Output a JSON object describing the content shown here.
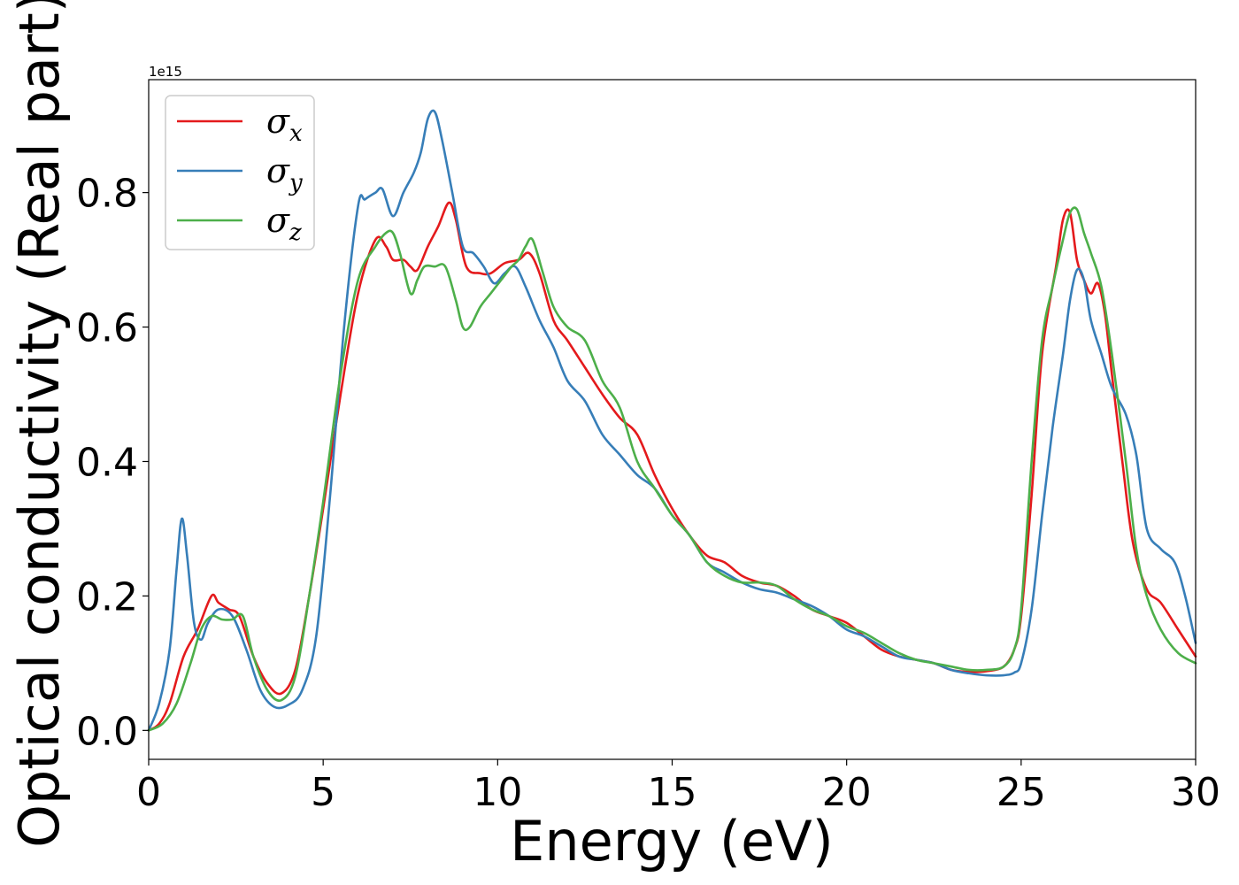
{
  "chart_data": {
    "type": "line",
    "xlabel": "Energy (eV)",
    "ylabel": "Optical conductivity (Real part)",
    "offset_text": "1e15",
    "xlim": [
      0,
      30
    ],
    "ylim": [
      -0.043,
      0.968
    ],
    "xticks": [
      0,
      5,
      10,
      15,
      20,
      25,
      30
    ],
    "xtick_labels": [
      "0",
      "5",
      "10",
      "15",
      "20",
      "25",
      "30"
    ],
    "yticks": [
      0.0,
      0.2,
      0.4,
      0.6,
      0.8
    ],
    "ytick_labels": [
      "0.0",
      "0.2",
      "0.4",
      "0.6",
      "0.8"
    ],
    "grid": false,
    "legend_position": "top-left",
    "series": [
      {
        "name": "σx",
        "legend_base": "σ",
        "legend_sub": "x",
        "color": "#e41a1c",
        "x": [
          0,
          0.3,
          0.6,
          1.0,
          1.4,
          1.8,
          2.0,
          2.3,
          2.6,
          3.0,
          3.4,
          3.8,
          4.2,
          4.6,
          5.0,
          5.5,
          6.0,
          6.5,
          6.8,
          7.0,
          7.3,
          7.5,
          7.7,
          8.0,
          8.3,
          8.6,
          8.8,
          9.1,
          9.5,
          9.8,
          10.2,
          10.6,
          10.9,
          11.2,
          11.6,
          12.0,
          12.5,
          13.0,
          13.5,
          14.0,
          14.5,
          15.0,
          15.5,
          16.0,
          16.5,
          17.0,
          17.5,
          18.0,
          18.5,
          19.0,
          19.5,
          20.0,
          20.5,
          21.0,
          21.5,
          22.0,
          22.5,
          23.0,
          23.5,
          24.0,
          24.5,
          24.8,
          25.0,
          25.3,
          25.6,
          26.0,
          26.2,
          26.4,
          26.6,
          26.8,
          27.0,
          27.2,
          27.4,
          27.6,
          27.9,
          28.2,
          28.6,
          29.0,
          29.5,
          30.0
        ],
        "y": [
          0,
          0.01,
          0.04,
          0.11,
          0.15,
          0.2,
          0.19,
          0.18,
          0.17,
          0.11,
          0.07,
          0.055,
          0.09,
          0.2,
          0.33,
          0.5,
          0.65,
          0.73,
          0.72,
          0.7,
          0.7,
          0.69,
          0.685,
          0.72,
          0.75,
          0.785,
          0.76,
          0.69,
          0.68,
          0.68,
          0.695,
          0.7,
          0.71,
          0.68,
          0.61,
          0.58,
          0.54,
          0.5,
          0.465,
          0.44,
          0.38,
          0.33,
          0.29,
          0.26,
          0.25,
          0.23,
          0.22,
          0.215,
          0.2,
          0.18,
          0.17,
          0.16,
          0.14,
          0.12,
          0.11,
          0.105,
          0.1,
          0.09,
          0.087,
          0.088,
          0.095,
          0.12,
          0.17,
          0.35,
          0.56,
          0.69,
          0.76,
          0.77,
          0.7,
          0.67,
          0.65,
          0.665,
          0.62,
          0.53,
          0.4,
          0.28,
          0.21,
          0.19,
          0.15,
          0.11
        ]
      },
      {
        "name": "σy",
        "legend_base": "σ",
        "legend_sub": "y",
        "color": "#377eb8",
        "x": [
          0,
          0.3,
          0.6,
          0.8,
          0.95,
          1.1,
          1.3,
          1.5,
          1.7,
          2.0,
          2.4,
          2.8,
          3.2,
          3.6,
          4.0,
          4.4,
          4.8,
          5.2,
          5.6,
          6.0,
          6.2,
          6.5,
          6.7,
          7.0,
          7.3,
          7.6,
          7.8,
          8.0,
          8.2,
          8.4,
          8.7,
          9.0,
          9.3,
          9.6,
          9.9,
          10.2,
          10.5,
          10.8,
          11.2,
          11.6,
          12.0,
          12.5,
          13.0,
          13.5,
          14.0,
          14.5,
          15.0,
          15.5,
          16.0,
          16.5,
          17.0,
          17.5,
          18.0,
          18.5,
          19.0,
          19.5,
          20.0,
          20.5,
          21.0,
          21.5,
          22.0,
          22.5,
          23.0,
          23.5,
          24.0,
          24.5,
          24.8,
          25.0,
          25.3,
          25.6,
          25.9,
          26.2,
          26.4,
          26.6,
          26.8,
          27.0,
          27.3,
          27.6,
          28.0,
          28.3,
          28.6,
          29.0,
          29.4,
          29.7,
          30.0
        ],
        "y": [
          0,
          0.04,
          0.12,
          0.24,
          0.315,
          0.26,
          0.16,
          0.135,
          0.16,
          0.18,
          0.17,
          0.12,
          0.06,
          0.035,
          0.038,
          0.06,
          0.14,
          0.35,
          0.6,
          0.78,
          0.79,
          0.8,
          0.805,
          0.765,
          0.8,
          0.83,
          0.86,
          0.91,
          0.92,
          0.88,
          0.8,
          0.72,
          0.71,
          0.69,
          0.665,
          0.68,
          0.69,
          0.66,
          0.61,
          0.57,
          0.52,
          0.49,
          0.44,
          0.41,
          0.38,
          0.36,
          0.32,
          0.29,
          0.25,
          0.235,
          0.22,
          0.21,
          0.205,
          0.195,
          0.185,
          0.17,
          0.15,
          0.14,
          0.125,
          0.11,
          0.105,
          0.1,
          0.09,
          0.085,
          0.082,
          0.082,
          0.086,
          0.1,
          0.18,
          0.32,
          0.45,
          0.56,
          0.64,
          0.685,
          0.67,
          0.61,
          0.56,
          0.51,
          0.47,
          0.41,
          0.3,
          0.27,
          0.25,
          0.2,
          0.13
        ]
      },
      {
        "name": "σz",
        "legend_base": "σ",
        "legend_sub": "z",
        "color": "#4daf4a",
        "x": [
          0,
          0.4,
          0.8,
          1.2,
          1.5,
          1.8,
          2.1,
          2.4,
          2.7,
          3.0,
          3.4,
          3.8,
          4.2,
          4.6,
          5.0,
          5.5,
          6.0,
          6.5,
          6.8,
          7.0,
          7.2,
          7.5,
          7.7,
          7.9,
          8.2,
          8.5,
          8.8,
          9.0,
          9.2,
          9.5,
          9.8,
          10.1,
          10.4,
          10.6,
          10.8,
          11.0,
          11.3,
          11.6,
          12.0,
          12.5,
          13.0,
          13.5,
          14.0,
          14.5,
          15.0,
          15.5,
          16.0,
          16.5,
          17.0,
          17.5,
          18.0,
          18.5,
          19.0,
          19.5,
          20.0,
          20.5,
          21.0,
          21.5,
          22.0,
          22.5,
          23.0,
          23.5,
          24.0,
          24.5,
          24.8,
          25.0,
          25.3,
          25.6,
          25.9,
          26.2,
          26.4,
          26.6,
          26.8,
          27.0,
          27.3,
          27.6,
          28.0,
          28.3,
          28.6,
          29.0,
          29.5,
          30.0
        ],
        "y": [
          0,
          0.01,
          0.04,
          0.1,
          0.15,
          0.17,
          0.165,
          0.165,
          0.17,
          0.11,
          0.06,
          0.045,
          0.08,
          0.2,
          0.34,
          0.53,
          0.67,
          0.72,
          0.74,
          0.74,
          0.71,
          0.65,
          0.67,
          0.69,
          0.69,
          0.69,
          0.64,
          0.6,
          0.6,
          0.63,
          0.65,
          0.67,
          0.69,
          0.7,
          0.72,
          0.73,
          0.68,
          0.63,
          0.6,
          0.58,
          0.52,
          0.48,
          0.4,
          0.36,
          0.32,
          0.29,
          0.25,
          0.23,
          0.22,
          0.22,
          0.215,
          0.195,
          0.18,
          0.17,
          0.155,
          0.145,
          0.13,
          0.115,
          0.105,
          0.1,
          0.095,
          0.09,
          0.09,
          0.095,
          0.12,
          0.18,
          0.4,
          0.58,
          0.66,
          0.73,
          0.77,
          0.775,
          0.74,
          0.71,
          0.66,
          0.56,
          0.4,
          0.27,
          0.2,
          0.15,
          0.115,
          0.1
        ]
      }
    ]
  }
}
